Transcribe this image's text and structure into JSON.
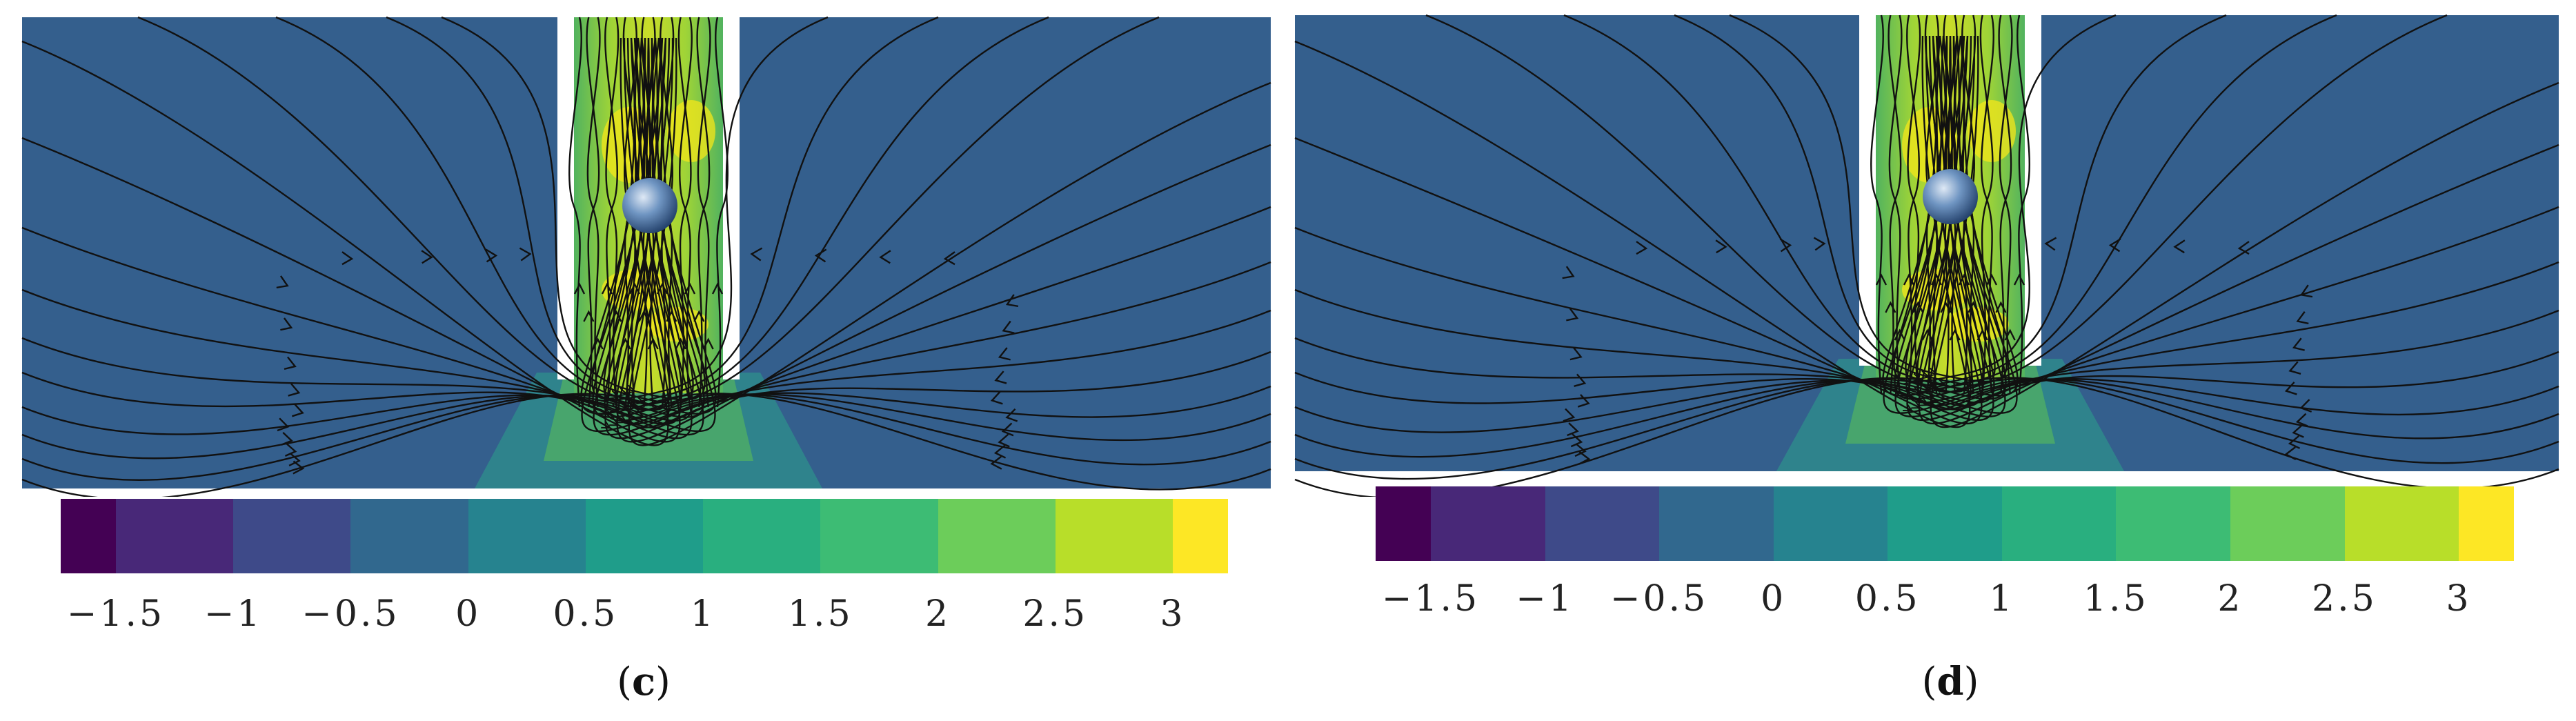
{
  "colors": {
    "background_field": "#345f8d",
    "jet_core": "#9fd437",
    "jet_mid": "#52b35f",
    "hot": "#f4e51a",
    "streamline": "#111111",
    "sphere": "#4a76a8"
  },
  "colorbar": {
    "segment_colors": [
      "#440154",
      "#482878",
      "#3e4a89",
      "#31688e",
      "#26838f",
      "#1f9d8a",
      "#29af7f",
      "#3dbc74",
      "#6ccd5a",
      "#b8de29",
      "#fde725"
    ],
    "tick_labels": [
      "−1.5",
      "−1",
      "−0.5",
      "0",
      "0.5",
      "1",
      "1.5",
      "2",
      "2.5",
      "3"
    ]
  },
  "panels": [
    {
      "id": "c",
      "caption_open": "(",
      "caption_letter": "c",
      "caption_close": ")"
    },
    {
      "id": "d",
      "caption_open": "(",
      "caption_letter": "d",
      "caption_close": ")"
    }
  ]
}
